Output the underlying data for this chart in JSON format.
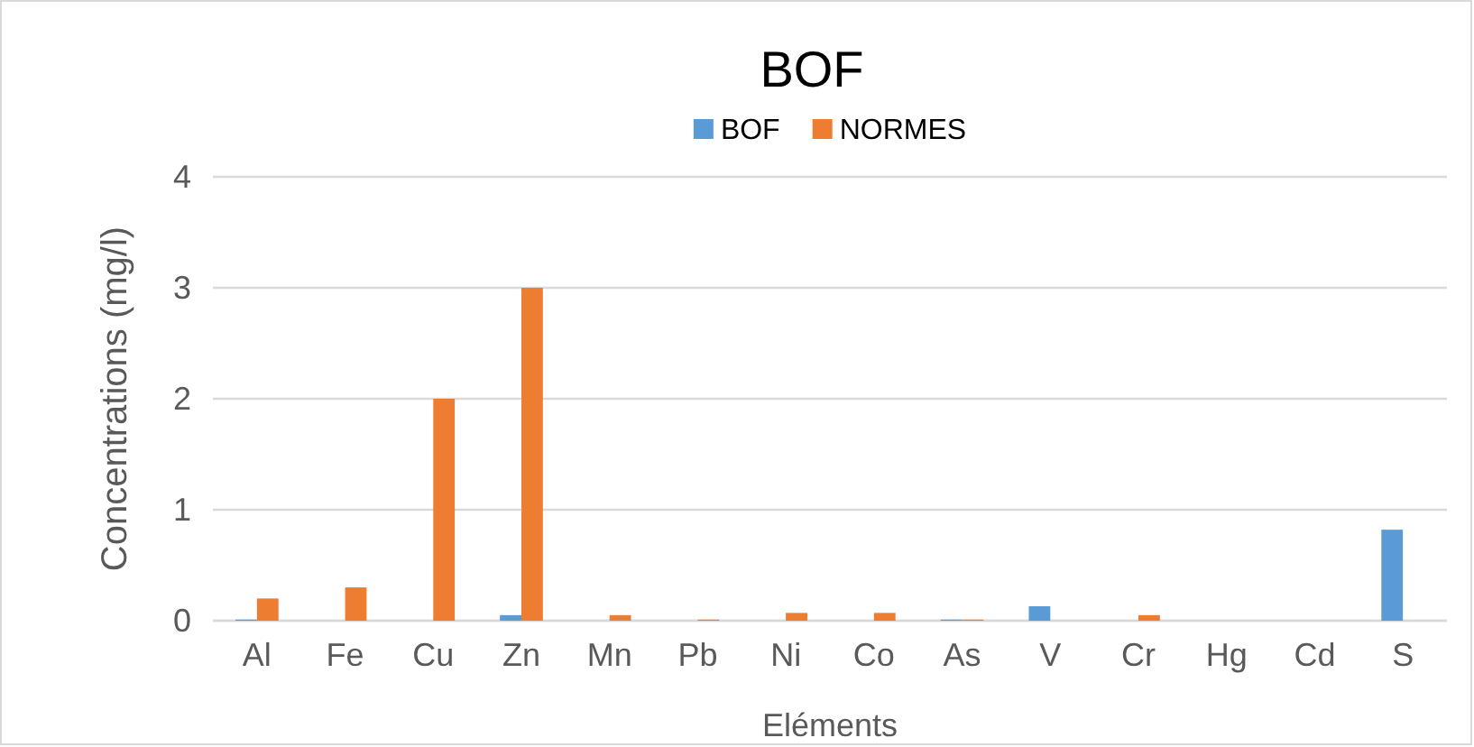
{
  "chart_data": {
    "type": "bar",
    "title": "BOF",
    "xlabel": "Eléments",
    "ylabel": "Concentrations (mg/l)",
    "categories": [
      "Al",
      "Fe",
      "Cu",
      "Zn",
      "Mn",
      "Pb",
      "Ni",
      "Co",
      "As",
      "V",
      "Cr",
      "Hg",
      "Cd",
      "S"
    ],
    "series": [
      {
        "name": "BOF",
        "color": "#5b9bd5",
        "values": [
          0.01,
          0,
          0,
          0.05,
          0,
          0,
          0,
          0,
          0.01,
          0.13,
          0,
          0,
          0,
          0.82
        ]
      },
      {
        "name": "NORMES",
        "color": "#ed7d31",
        "values": [
          0.2,
          0.3,
          2,
          3,
          0.05,
          0.01,
          0.07,
          0.07,
          0.01,
          null,
          0.05,
          null,
          null,
          null
        ]
      }
    ],
    "ylim": [
      0,
      4
    ],
    "yticks": [
      0,
      1,
      2,
      3,
      4
    ],
    "grid": "y",
    "legend": "top"
  }
}
